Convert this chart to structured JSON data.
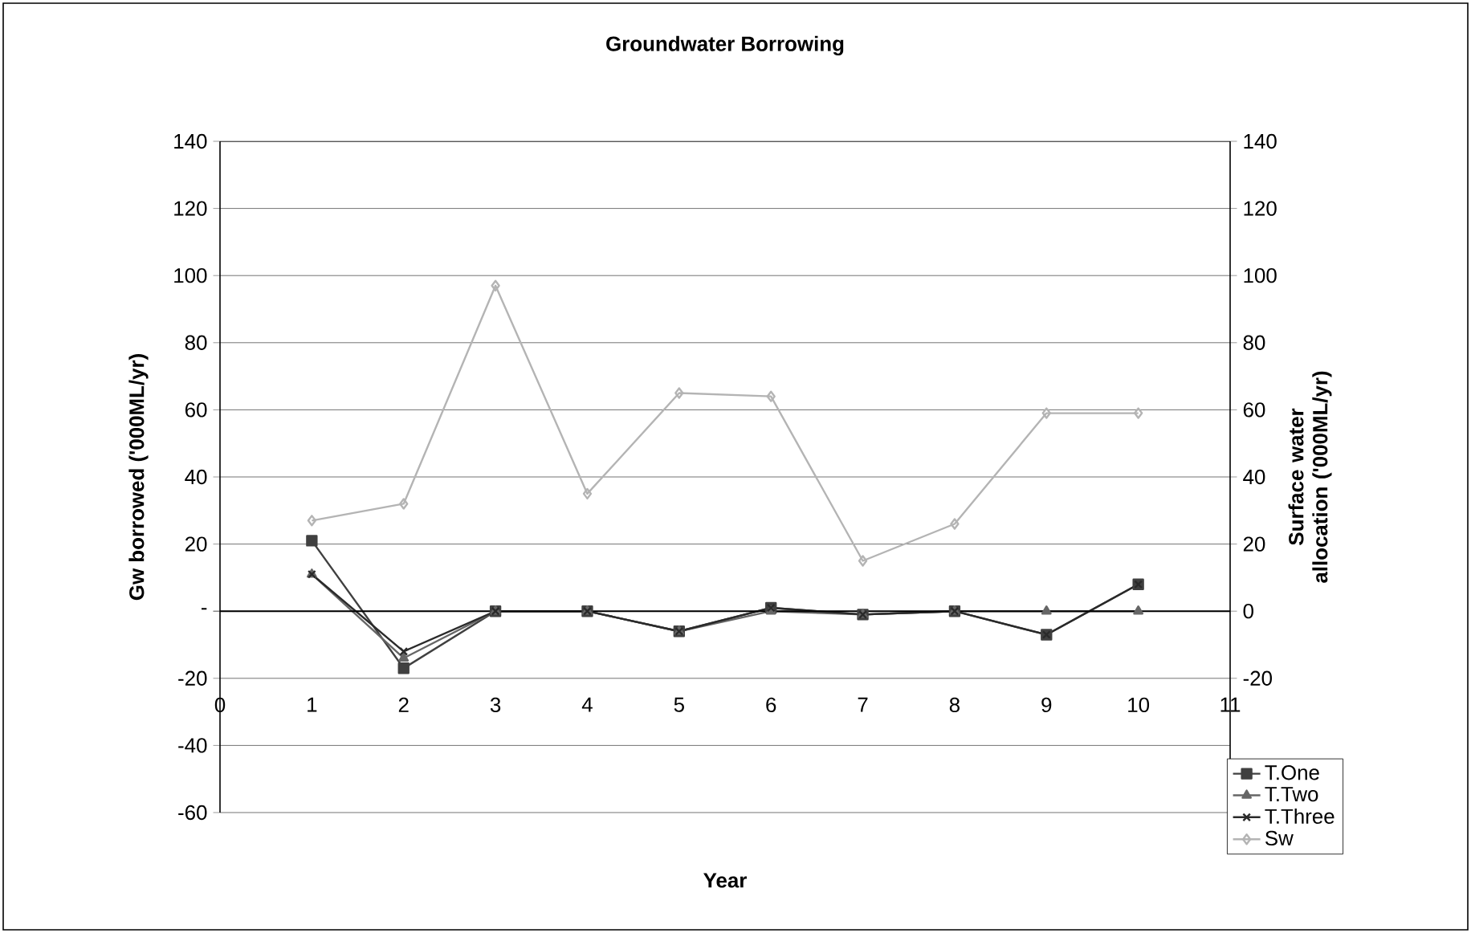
{
  "chart_data": {
    "type": "line",
    "title": "Groundwater Borrowing",
    "xlabel": "Year",
    "ylabel": "Gw borrowed ('000ML/yr)",
    "y2label": "Surface water allocation ('000ML/yr)",
    "x": [
      1,
      2,
      3,
      4,
      5,
      6,
      7,
      8,
      9,
      10
    ],
    "xlim": [
      0,
      11
    ],
    "xticks": [
      0,
      1,
      2,
      3,
      4,
      5,
      6,
      7,
      8,
      9,
      10,
      11
    ],
    "ylim": [
      -60,
      140
    ],
    "yticks": [
      -60,
      -40,
      -20,
      {
        "value": 0,
        "label": "-"
      },
      20,
      40,
      60,
      80,
      100,
      120,
      140
    ],
    "y2lim": [
      -60,
      140
    ],
    "y2ticks": [
      -20,
      0,
      20,
      40,
      60,
      80,
      100,
      120,
      140
    ],
    "grid": "y",
    "legend": "bottom right",
    "series": [
      {
        "name": "T.One",
        "color": "#404040",
        "marker": "square",
        "values": [
          21,
          -17,
          0,
          0,
          -6,
          1,
          -1,
          0,
          -7,
          8
        ]
      },
      {
        "name": "T.Two",
        "color": "#666666",
        "marker": "triangle",
        "values": [
          11,
          -14,
          0,
          0,
          -6,
          0,
          -1,
          0,
          0,
          0
        ]
      },
      {
        "name": "T.Three",
        "color": "#2a2a2a",
        "marker": "cross",
        "values": [
          11,
          -12,
          0,
          0,
          -6,
          1,
          -1,
          0,
          -7,
          8
        ]
      },
      {
        "name": "Sw",
        "color": "#b4b4b4",
        "marker": "diamond",
        "axis": "y2",
        "values": [
          27,
          32,
          97,
          35,
          65,
          64,
          15,
          26,
          59,
          59
        ]
      }
    ]
  }
}
